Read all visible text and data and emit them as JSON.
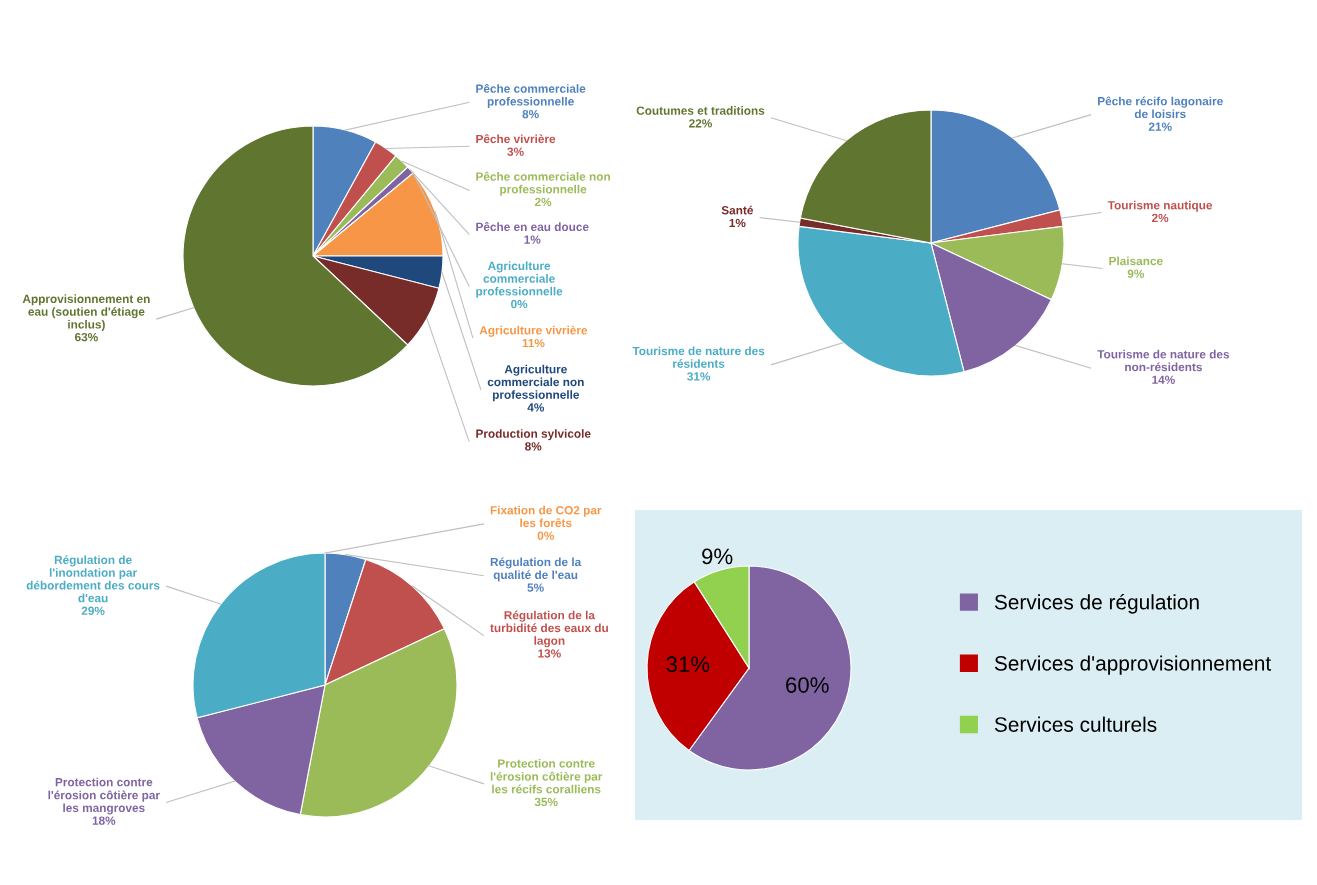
{
  "chart_data": [
    {
      "type": "pie",
      "categories": [
        "Pêche commerciale professionnelle",
        "Pêche vivrière",
        "Pêche commerciale non professionnelle",
        "Pêche en eau douce",
        "Agriculture commerciale professionnelle",
        "Agriculture vivrière",
        "Agriculture commerciale non professionnelle",
        "Production sylvicole",
        "Approvisionnement en eau (soutien d'étiage inclus)"
      ],
      "values": [
        8,
        3,
        2,
        1,
        0,
        11,
        4,
        8,
        63
      ],
      "value_labels": [
        "8%",
        "3%",
        "2%",
        "1%",
        "0%",
        "11%",
        "4%",
        "8%",
        "63%"
      ],
      "colors": [
        "#4f81bd",
        "#c0504d",
        "#9bbb59",
        "#8064a2",
        "#4bacc6",
        "#f79646",
        "#1f497d",
        "#772c2a",
        "#5f7530"
      ],
      "legend": false
    },
    {
      "type": "pie",
      "categories": [
        "Pêche récifo lagonaire de loisirs",
        "Tourisme nautique",
        "Plaisance",
        "Tourisme de nature des non-résidents",
        "Tourisme de nature des résidents",
        "Santé",
        "Coutumes et traditions"
      ],
      "values": [
        21,
        2,
        9,
        14,
        31,
        1,
        22
      ],
      "value_labels": [
        "21%",
        "2%",
        "9%",
        "14%",
        "31%",
        "1%",
        "22%"
      ],
      "colors": [
        "#4f81bd",
        "#c0504d",
        "#9bbb59",
        "#8064a2",
        "#4bacc6",
        "#772c2a",
        "#5f7530"
      ],
      "legend": false
    },
    {
      "type": "pie",
      "categories": [
        "Fixation de CO2 par les forêts",
        "Régulation de la qualité de l'eau",
        "Régulation de la turbidité des eaux du lagon",
        "Protection contre l'érosion côtière par les récifs coralliens",
        "Protection contre l'érosion côtière par les mangroves",
        "Régulation de l'inondation par débordement des cours d'eau"
      ],
      "values": [
        0,
        5,
        13,
        35,
        18,
        29
      ],
      "value_labels": [
        "0%",
        "5%",
        "13%",
        "35%",
        "18%",
        "29%"
      ],
      "colors": [
        "#f79646",
        "#4f81bd",
        "#c0504d",
        "#9bbb59",
        "#8064a2",
        "#4bacc6"
      ],
      "legend": false
    },
    {
      "type": "pie",
      "categories": [
        "Services de régulation",
        "Services d'approvisionnement",
        "Services culturels"
      ],
      "values": [
        60,
        31,
        9
      ],
      "value_labels": [
        "60%",
        "31%",
        "9%"
      ],
      "colors": [
        "#8064a2",
        "#c00000",
        "#92d050"
      ],
      "legend": "right"
    }
  ]
}
